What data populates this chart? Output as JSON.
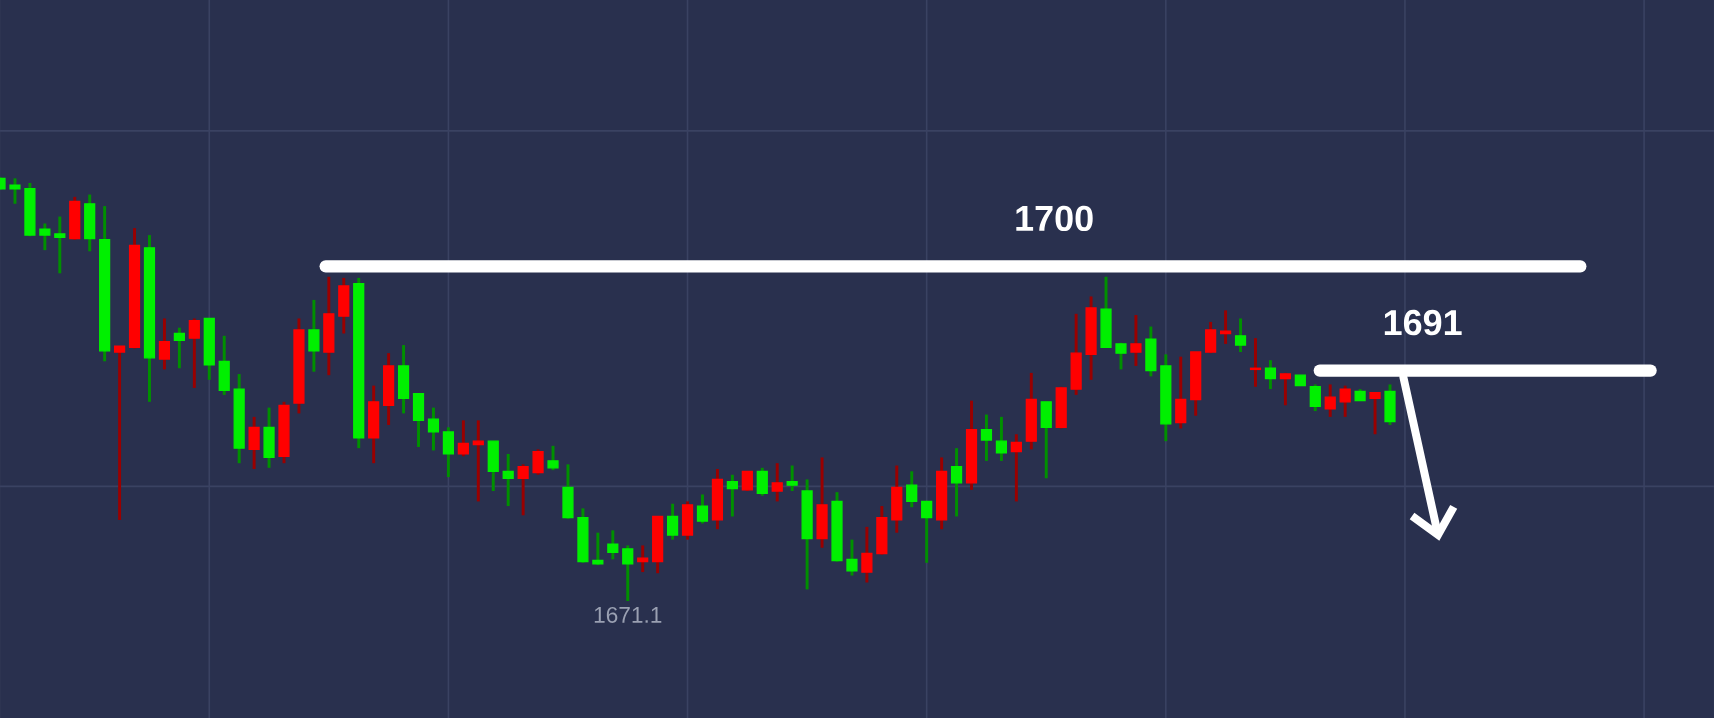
{
  "chart_data": {
    "type": "candlestick",
    "categories": [
      null,
      null,
      null,
      null,
      null,
      null,
      null,
      null,
      null,
      null,
      null,
      null,
      null,
      null,
      null,
      null,
      null,
      null,
      null,
      null,
      null,
      null,
      null,
      null,
      null,
      null,
      null,
      null,
      null,
      null,
      null,
      null,
      null,
      null,
      null,
      null,
      null,
      null,
      null,
      null,
      null,
      null,
      null,
      null,
      null,
      null,
      null,
      null,
      null,
      null,
      null,
      null,
      null,
      null,
      null,
      null,
      null,
      null,
      null,
      null,
      null,
      null,
      null,
      null,
      null,
      null,
      null,
      null,
      null,
      null,
      null,
      null,
      null,
      null,
      null,
      null,
      null,
      null,
      null,
      null,
      null,
      null,
      null,
      null,
      null,
      null,
      null,
      null,
      null,
      null,
      null,
      null,
      null,
      null
    ],
    "ohlc": [
      [
        1706.7,
        1707.7,
        1706.6,
        1707.6
      ],
      [
        1706.7,
        1707.6,
        1705.4,
        1707.0
      ],
      [
        1702.7,
        1707.2,
        1702.6,
        1706.7
      ],
      [
        1702.7,
        1703.7,
        1701.4,
        1703.2
      ],
      [
        1702.5,
        1704.3,
        1699.4,
        1702.8
      ],
      [
        1705.6,
        1706.0,
        1702.3,
        1702.4
      ],
      [
        1702.4,
        1706.2,
        1701.3,
        1705.4
      ],
      [
        1692.7,
        1705.2,
        1691.8,
        1702.3
      ],
      [
        1693.1,
        1693.1,
        1678.1,
        1692.6
      ],
      [
        1701.8,
        1703.3,
        1692.9,
        1693.0
      ],
      [
        1692.1,
        1702.7,
        1688.3,
        1701.6
      ],
      [
        1693.5,
        1695.5,
        1691.1,
        1692.0
      ],
      [
        1693.6,
        1694.7,
        1691.2,
        1694.2
      ],
      [
        1695.3,
        1695.5,
        1689.5,
        1693.8
      ],
      [
        1691.5,
        1695.5,
        1690.2,
        1695.5
      ],
      [
        1689.3,
        1694.0,
        1688.9,
        1691.8
      ],
      [
        1684.3,
        1690.7,
        1683.0,
        1689.4
      ],
      [
        1686.1,
        1687.0,
        1682.5,
        1684.2
      ],
      [
        1683.5,
        1687.8,
        1682.6,
        1686.1
      ],
      [
        1688.0,
        1688.3,
        1683.0,
        1683.6
      ],
      [
        1694.5,
        1695.5,
        1687.3,
        1688.2
      ],
      [
        1692.7,
        1697.1,
        1690.9,
        1694.5
      ],
      [
        1695.9,
        1699.1,
        1690.6,
        1692.6
      ],
      [
        1698.3,
        1699.0,
        1694.2,
        1695.7
      ],
      [
        1685.2,
        1699.0,
        1684.3,
        1698.5
      ],
      [
        1688.3,
        1689.7,
        1683.0,
        1685.2
      ],
      [
        1691.4,
        1692.5,
        1686.3,
        1688.0
      ],
      [
        1688.6,
        1693.2,
        1687.3,
        1691.4
      ],
      [
        1686.7,
        1689.0,
        1684.4,
        1689.0
      ],
      [
        1685.7,
        1687.8,
        1684.1,
        1686.8
      ],
      [
        1683.8,
        1686.1,
        1681.8,
        1685.7
      ],
      [
        1684.7,
        1686.7,
        1683.6,
        1683.8
      ],
      [
        1684.9,
        1686.7,
        1679.7,
        1684.6
      ],
      [
        1682.3,
        1684.9,
        1680.6,
        1684.9
      ],
      [
        1681.7,
        1683.8,
        1679.3,
        1682.3
      ],
      [
        1682.7,
        1682.9,
        1678.5,
        1681.7
      ],
      [
        1684.0,
        1684.2,
        1682.0,
        1682.2
      ],
      [
        1682.6,
        1684.5,
        1682.4,
        1683.2
      ],
      [
        1678.3,
        1682.9,
        1678.2,
        1680.9
      ],
      [
        1674.5,
        1679.1,
        1674.4,
        1678.3
      ],
      [
        1674.3,
        1677.0,
        1674.2,
        1674.6
      ],
      [
        1675.3,
        1677.2,
        1674.7,
        1676.0
      ],
      [
        1674.3,
        1675.9,
        1671.1,
        1675.6
      ],
      [
        1674.8,
        1675.9,
        1673.6,
        1674.5
      ],
      [
        1678.4,
        1678.4,
        1673.5,
        1674.5
      ],
      [
        1676.8,
        1679.5,
        1676.4,
        1678.4
      ],
      [
        1679.4,
        1679.7,
        1676.4,
        1676.8
      ],
      [
        1678.0,
        1680.3,
        1677.8,
        1679.3
      ],
      [
        1681.6,
        1682.5,
        1677.3,
        1678.1
      ],
      [
        1680.8,
        1682.0,
        1678.4,
        1681.4
      ],
      [
        1682.3,
        1682.3,
        1680.6,
        1680.7
      ],
      [
        1680.4,
        1682.6,
        1680.2,
        1682.3
      ],
      [
        1681.3,
        1683.0,
        1679.7,
        1680.6
      ],
      [
        1681.1,
        1682.8,
        1680.6,
        1681.4
      ],
      [
        1676.5,
        1681.6,
        1672.1,
        1680.6
      ],
      [
        1679.4,
        1683.5,
        1675.7,
        1676.5
      ],
      [
        1674.6,
        1680.5,
        1674.5,
        1679.7
      ],
      [
        1673.7,
        1676.4,
        1673.3,
        1674.7
      ],
      [
        1675.2,
        1677.5,
        1672.7,
        1673.6
      ],
      [
        1678.3,
        1679.3,
        1675.1,
        1675.2
      ],
      [
        1680.9,
        1682.8,
        1677.0,
        1678.1
      ],
      [
        1679.7,
        1682.3,
        1679.2,
        1681.1
      ],
      [
        1678.3,
        1679.7,
        1674.4,
        1679.7
      ],
      [
        1682.3,
        1683.5,
        1677.3,
        1678.1
      ],
      [
        1681.3,
        1684.3,
        1678.4,
        1682.7
      ],
      [
        1685.9,
        1688.4,
        1680.7,
        1681.3
      ],
      [
        1685.0,
        1687.2,
        1683.2,
        1685.9
      ],
      [
        1683.9,
        1687.0,
        1683.2,
        1684.9
      ],
      [
        1684.8,
        1685.5,
        1679.7,
        1684.0
      ],
      [
        1688.5,
        1690.8,
        1684.2,
        1684.9
      ],
      [
        1686.1,
        1688.3,
        1681.7,
        1688.3
      ],
      [
        1689.5,
        1689.6,
        1686.0,
        1686.1
      ],
      [
        1692.5,
        1695.9,
        1688.9,
        1689.4
      ],
      [
        1696.4,
        1697.4,
        1690.2,
        1692.4
      ],
      [
        1693.0,
        1699.1,
        1693.0,
        1696.3
      ],
      [
        1692.5,
        1693.4,
        1691.1,
        1693.3
      ],
      [
        1693.3,
        1695.8,
        1691.4,
        1692.6
      ],
      [
        1691.0,
        1694.8,
        1690.5,
        1693.7
      ],
      [
        1686.4,
        1692.4,
        1684.9,
        1691.4
      ],
      [
        1688.5,
        1692.2,
        1686.0,
        1686.5
      ],
      [
        1692.6,
        1692.6,
        1687.1,
        1688.5
      ],
      [
        1694.5,
        1695.2,
        1692.5,
        1692.6
      ],
      [
        1694.4,
        1696.2,
        1693.3,
        1694.2
      ],
      [
        1693.2,
        1695.5,
        1692.6,
        1694.0
      ],
      [
        1691.2,
        1693.8,
        1689.6,
        1691.1
      ],
      [
        1690.3,
        1691.9,
        1689.4,
        1691.2
      ],
      [
        1690.7,
        1690.8,
        1688.0,
        1690.3
      ],
      [
        1689.7,
        1690.6,
        1689.7,
        1690.6
      ],
      [
        1687.9,
        1689.8,
        1687.5,
        1689.6
      ],
      [
        1688.7,
        1689.8,
        1687.0,
        1687.7
      ],
      [
        1689.4,
        1689.7,
        1687.0,
        1688.3
      ],
      [
        1688.4,
        1689.4,
        1688.4,
        1689.2
      ],
      [
        1689.1,
        1689.1,
        1685.5,
        1688.6
      ],
      [
        1686.6,
        1689.8,
        1686.3,
        1689.2
      ]
    ],
    "colors": [
      "#00f000",
      "#00f000",
      "#00f000",
      "#00f000",
      "#00f000",
      "#ff0000",
      "#00f000",
      "#00f000",
      "#ff0000",
      "#ff0000",
      "#00f000",
      "#ff0000",
      "#00f000",
      "#ff0000",
      "#00f000",
      "#00f000",
      "#00f000",
      "#ff0000",
      "#00f000",
      "#ff0000",
      "#ff0000",
      "#00f000",
      "#ff0000",
      "#ff0000",
      "#00f000",
      "#ff0000",
      "#ff0000",
      "#00f000",
      "#00f000",
      "#00f000",
      "#00f000",
      "#ff0000",
      "#ff0000",
      "#00f000",
      "#00f000",
      "#ff0000",
      "#ff0000",
      "#00f000",
      "#00f000",
      "#00f000",
      "#00f000",
      "#00f000",
      "#00f000",
      "#ff0000",
      "#ff0000",
      "#00f000",
      "#ff0000",
      "#00f000",
      "#ff0000",
      "#00f000",
      "#ff0000",
      "#00f000",
      "#ff0000",
      "#00f000",
      "#00f000",
      "#ff0000",
      "#00f000",
      "#00f000",
      "#ff0000",
      "#ff0000",
      "#ff0000",
      "#00f000",
      "#00f000",
      "#ff0000",
      "#00f000",
      "#ff0000",
      "#00f000",
      "#00f000",
      "#ff0000",
      "#ff0000",
      "#00f000",
      "#ff0000",
      "#ff0000",
      "#ff0000",
      "#00f000",
      "#00f000",
      "#ff0000",
      "#00f000",
      "#00f000",
      "#ff0000",
      "#ff0000",
      "#ff0000",
      "#ff0000",
      "#00f000",
      "#ff0000",
      "#00f000",
      "#ff0000",
      "#00f000",
      "#00f000",
      "#ff0000",
      "#ff0000",
      "#00f000",
      "#ff0000",
      "#00f000"
    ],
    "ylim": [
      1661,
      1723
    ],
    "yticks": [
      {
        "value": 1681,
        "label": null
      },
      {
        "value": 1711.7,
        "label": null
      }
    ],
    "grid": true,
    "ref_lines": [
      {
        "axis": "y",
        "value": 1700,
        "label": "1700",
        "color": "#ffffff"
      },
      {
        "axis": "y",
        "value": 1691,
        "label": "1691",
        "color": "#ffffff"
      }
    ],
    "annotations": [
      {
        "text": "1671.1",
        "y": 1671.1
      }
    ]
  }
}
